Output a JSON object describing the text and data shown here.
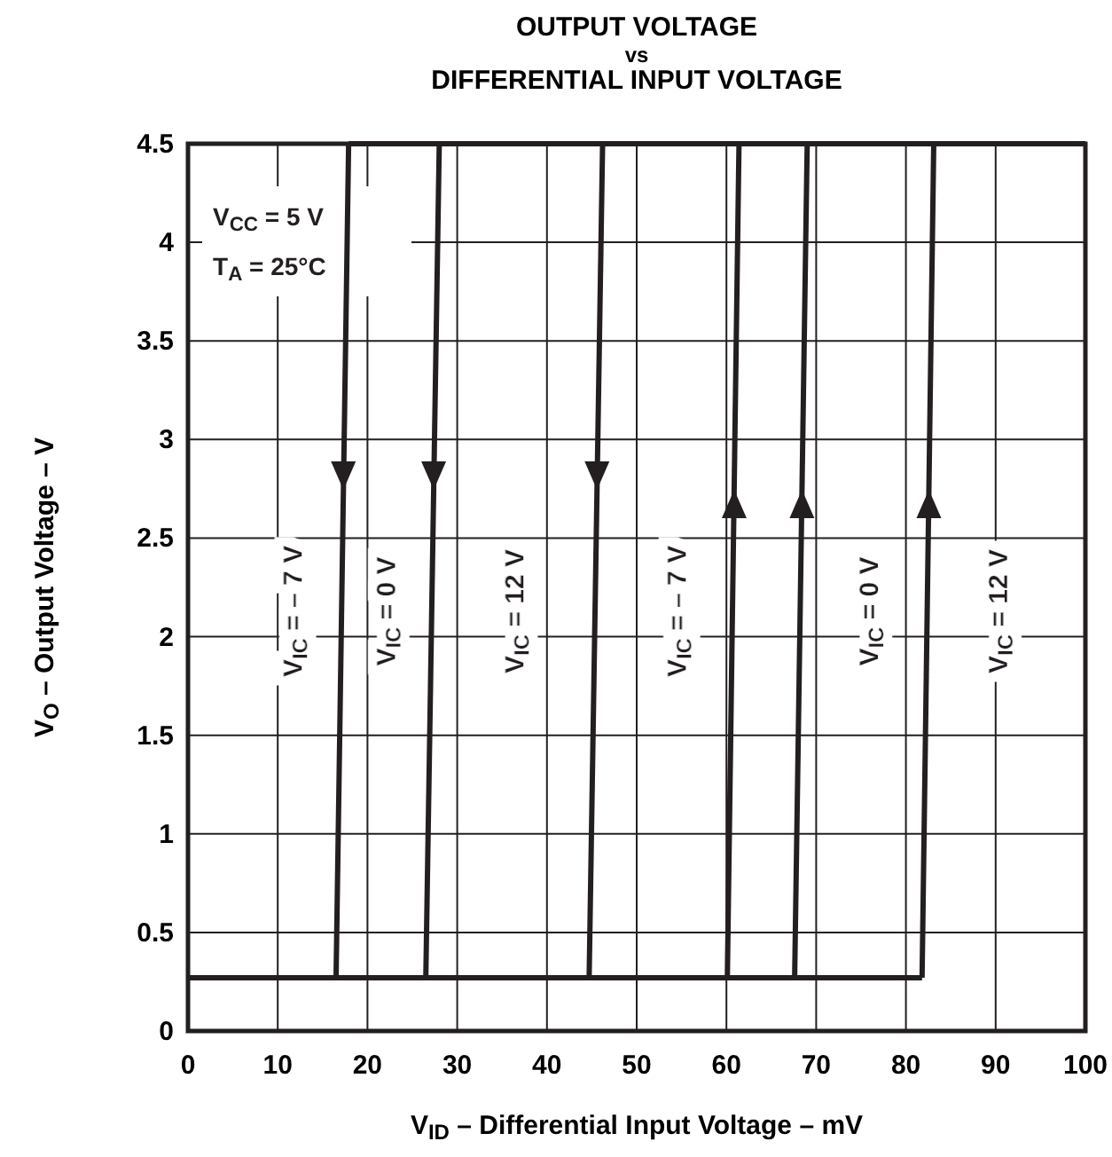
{
  "chart_data": {
    "type": "line",
    "title": "OUTPUT VOLTAGE\nvs\nDIFFERENTIAL INPUT VOLTAGE",
    "xlabel": "V$_{ID}$ – Differential Input Voltage – mV",
    "ylabel": "V$_{O}$ – Output Voltage – V",
    "xlim": [
      0,
      100
    ],
    "xticks": [
      0,
      10,
      20,
      30,
      40,
      50,
      60,
      70,
      80,
      90,
      100
    ],
    "ylim": [
      0,
      4.5
    ],
    "yticks": [
      0,
      0.5,
      1,
      1.5,
      2,
      2.5,
      3,
      3.5,
      4,
      4.5
    ],
    "grid": true,
    "series": [
      {
        "color": "#231f20",
        "x": [
          0,
          81.8
        ],
        "values": [
          0.27,
          0.27
        ]
      },
      {
        "color": "#231f20",
        "x": [
          17.9,
          100
        ],
        "values": [
          4.5,
          4.5
        ]
      },
      {
        "color": "#231f20",
        "x": [
          17.9,
          16.5
        ],
        "values": [
          4.5,
          0.27
        ]
      },
      {
        "color": "#231f20",
        "x": [
          28,
          26.5
        ],
        "values": [
          4.5,
          0.27
        ]
      },
      {
        "color": "#231f20",
        "x": [
          46.2,
          44.7
        ],
        "values": [
          4.5,
          0.27
        ]
      },
      {
        "color": "#231f20",
        "x": [
          60.1,
          61.4
        ],
        "values": [
          0.27,
          4.5
        ]
      },
      {
        "color": "#231f20",
        "x": [
          67.6,
          69
        ],
        "values": [
          0.27,
          4.5
        ]
      },
      {
        "color": "#231f20",
        "x": [
          81.8,
          83.1
        ],
        "values": [
          0.27,
          4.5
        ]
      }
    ],
    "annotations": [
      "V$_{CC}$ = 5 V",
      "T$_{A}$ = 25°C",
      "V$_{IC}$ = – 7 V",
      "V$_{IC}$ = 0 V",
      "V$_{IC}$ = 12 V",
      "V$_{IC}$ = – 7 V",
      "V$_{IC}$ = 0 V",
      "V$_{IC}$ = 12 V"
    ]
  }
}
